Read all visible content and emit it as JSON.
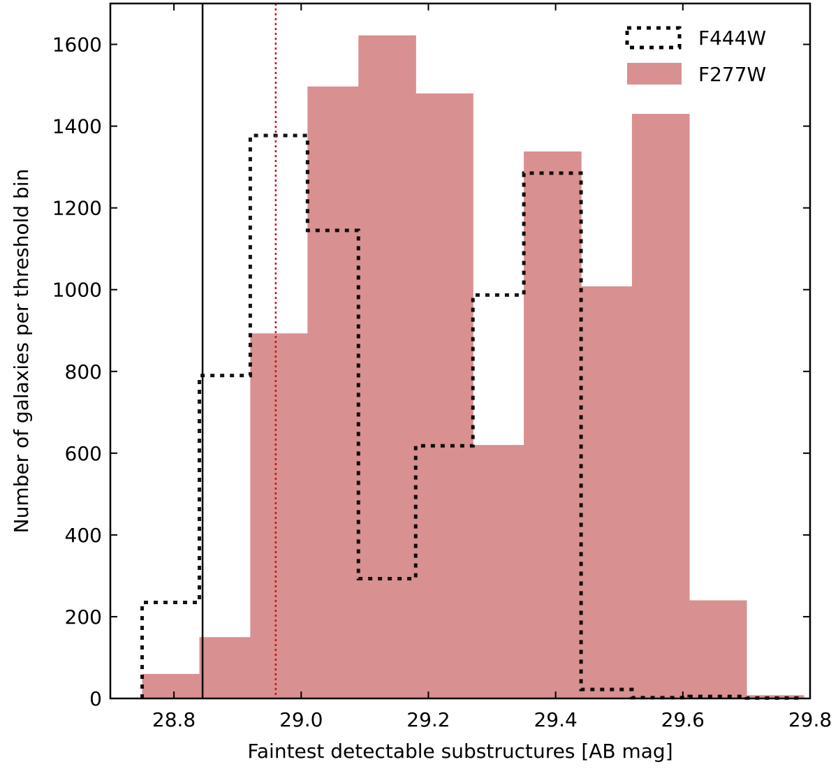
{
  "chart_data": {
    "type": "bar",
    "title": "",
    "xlabel": "Faintest detectable substructures [AB mag]",
    "ylabel": "Number of galaxies per threshold bin",
    "xlim": [
      28.7,
      29.8
    ],
    "ylim": [
      0,
      1700
    ],
    "xticks": [
      "28.8",
      "29.0",
      "29.2",
      "29.4",
      "29.6",
      "29.8"
    ],
    "yticks": [
      "0",
      "200",
      "400",
      "600",
      "800",
      "1000",
      "1200",
      "1400",
      "1600"
    ],
    "legend_position": "top-right",
    "reference_lines": [
      {
        "x": 28.845,
        "color": "#000000",
        "style": "solid"
      },
      {
        "x": 28.96,
        "color": "#c81414",
        "style": "dotted"
      }
    ],
    "series": [
      {
        "name": "F277W",
        "style": "filled",
        "color": "#d89090",
        "bin_edges": [
          28.75,
          28.84,
          28.92,
          29.01,
          29.09,
          29.18,
          29.27,
          29.35,
          29.44,
          29.52,
          29.61,
          29.7,
          29.79
        ],
        "values": [
          60,
          150,
          893,
          1497,
          1622,
          1480,
          620,
          1338,
          1008,
          1430,
          240,
          8
        ]
      },
      {
        "name": "F444W",
        "style": "step-dotted",
        "color": "#000000",
        "bin_edges": [
          28.75,
          28.84,
          28.92,
          29.01,
          29.09,
          29.18,
          29.27,
          29.35,
          29.44,
          29.52,
          29.61,
          29.7,
          29.79
        ],
        "values": [
          235,
          790,
          1377,
          1145,
          293,
          618,
          987,
          1285,
          22,
          2,
          5,
          1
        ]
      }
    ]
  }
}
